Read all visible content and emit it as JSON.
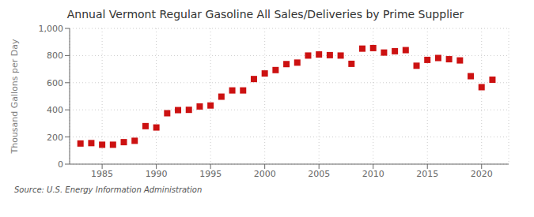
{
  "chart_data": {
    "type": "scatter",
    "title": "Annual Vermont Regular Gasoline All Sales/Deliveries by Prime Supplier",
    "ylabel": "Thousand Gallons per Day",
    "annotations": [
      "Source: U.S. Energy Information Administration"
    ],
    "x": [
      1983,
      1984,
      1985,
      1986,
      1987,
      1988,
      1989,
      1990,
      1991,
      1992,
      1993,
      1994,
      1995,
      1996,
      1997,
      1998,
      1999,
      2000,
      2001,
      2002,
      2003,
      2004,
      2005,
      2006,
      2007,
      2008,
      2009,
      2010,
      2011,
      2012,
      2013,
      2014,
      2015,
      2016,
      2017,
      2018,
      2019,
      2020,
      2021
    ],
    "values": [
      152,
      155,
      143,
      143,
      162,
      172,
      280,
      270,
      375,
      398,
      400,
      425,
      432,
      497,
      543,
      543,
      627,
      668,
      693,
      737,
      748,
      800,
      808,
      803,
      800,
      739,
      851,
      855,
      822,
      832,
      840,
      725,
      768,
      782,
      773,
      764,
      648,
      567,
      622
    ],
    "color": "#cc1111",
    "marker": "square",
    "xlim": [
      1982,
      2022.5
    ],
    "xticks": [
      1985,
      1990,
      1995,
      2000,
      2005,
      2010,
      2015,
      2020
    ],
    "ylim": [
      0,
      1000
    ],
    "yticks": [
      0,
      200,
      400,
      600,
      800,
      {
        "value": 1000,
        "label": "1,000"
      }
    ],
    "grid": true
  }
}
